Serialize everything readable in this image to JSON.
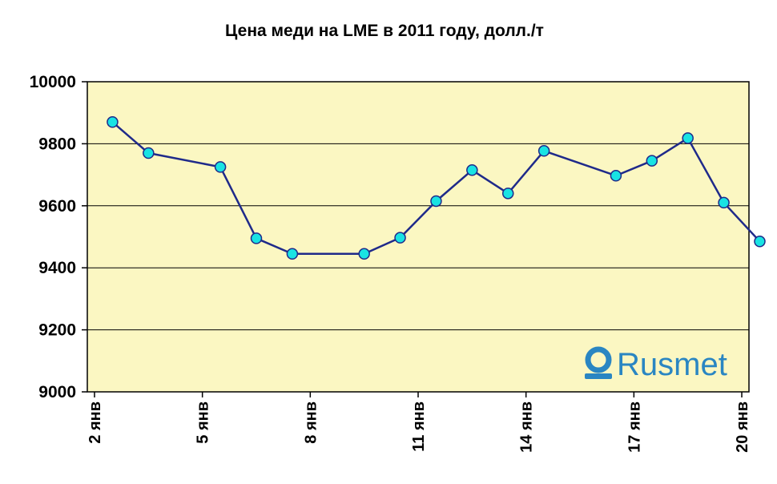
{
  "chart_data": {
    "type": "line",
    "title": "Цена меди на LME в 2011 году, долл./т",
    "xlabel": "",
    "ylabel": "",
    "ylim": [
      9000,
      10000
    ],
    "yticks": [
      9000,
      9200,
      9400,
      9600,
      9800,
      10000
    ],
    "x_day_range": [
      2,
      20
    ],
    "x_tick_days": [
      2,
      5,
      8,
      11,
      14,
      17,
      20
    ],
    "x_tick_labels": [
      "2 янв",
      "5 янв",
      "8 янв",
      "11 янв",
      "14 янв",
      "17 янв",
      "20 янв"
    ],
    "grid": true,
    "legend": "none",
    "series": [
      {
        "points": [
          {
            "day": 2.5,
            "value": 9870
          },
          {
            "day": 3.5,
            "value": 9770
          },
          {
            "day": 5.5,
            "value": 9725
          },
          {
            "day": 6.5,
            "value": 9495
          },
          {
            "day": 7.5,
            "value": 9445
          },
          {
            "day": 9.5,
            "value": 9445
          },
          {
            "day": 10.5,
            "value": 9497
          },
          {
            "day": 11.5,
            "value": 9615
          },
          {
            "day": 12.5,
            "value": 9715
          },
          {
            "day": 13.5,
            "value": 9640
          },
          {
            "day": 14.5,
            "value": 9777
          },
          {
            "day": 16.5,
            "value": 9697
          },
          {
            "day": 17.5,
            "value": 9745
          },
          {
            "day": 18.5,
            "value": 9818
          },
          {
            "day": 19.5,
            "value": 9610
          },
          {
            "day": 20.5,
            "value": 9485
          }
        ]
      }
    ],
    "colors": {
      "plot_background": "#fbf7c2",
      "line": "#1f2a8a",
      "marker_fill": "#19e3e3",
      "grid": "#000000",
      "logo": "#2a86c2"
    }
  },
  "logo": {
    "text": "Rusmet",
    "icon": "rusmet-logo-icon"
  }
}
